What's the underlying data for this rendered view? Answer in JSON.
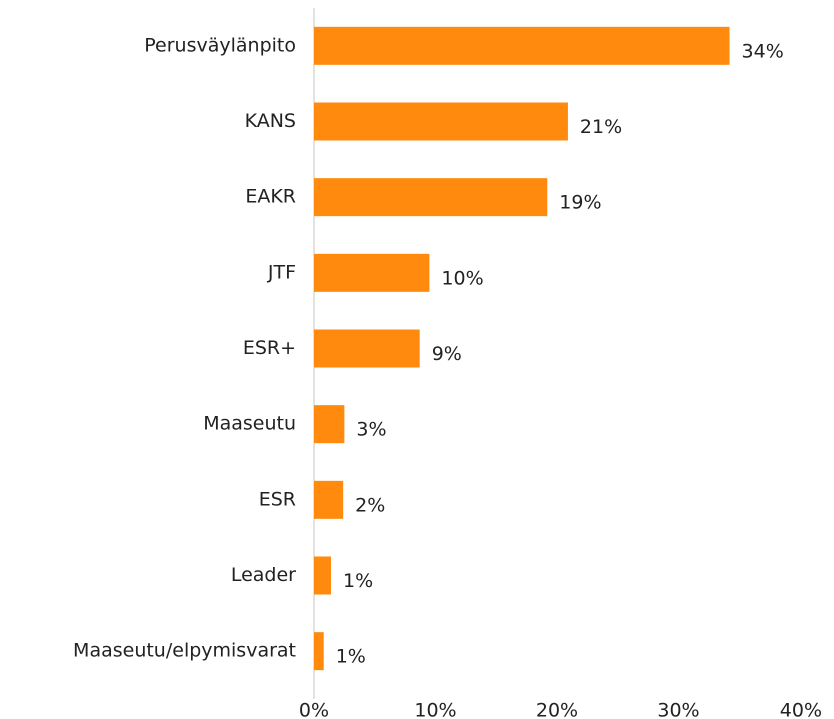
{
  "chart_data": {
    "type": "bar",
    "orientation": "horizontal",
    "categories": [
      "Perusväylänpito",
      "KANS",
      "EAKR",
      "JTF",
      "ESR+",
      "Maaseutu",
      "ESR",
      "Leader",
      "Maaseutu/elpymisvarat"
    ],
    "values": [
      34.2,
      20.9,
      19.2,
      9.5,
      8.7,
      2.5,
      2.4,
      1.4,
      0.8
    ],
    "value_labels": [
      "34%",
      "21%",
      "19%",
      "10%",
      "9%",
      "3%",
      "2%",
      "1%",
      "1%"
    ],
    "color": "#ff8a0d",
    "xlim": [
      0,
      40
    ],
    "xticks": [
      {
        "value": 0,
        "label": "0%"
      },
      {
        "value": 10,
        "label": "10%"
      },
      {
        "value": 20,
        "label": "20%"
      },
      {
        "value": 30,
        "label": "30%"
      },
      {
        "value": 40,
        "label": "40%"
      }
    ],
    "grid": false
  }
}
